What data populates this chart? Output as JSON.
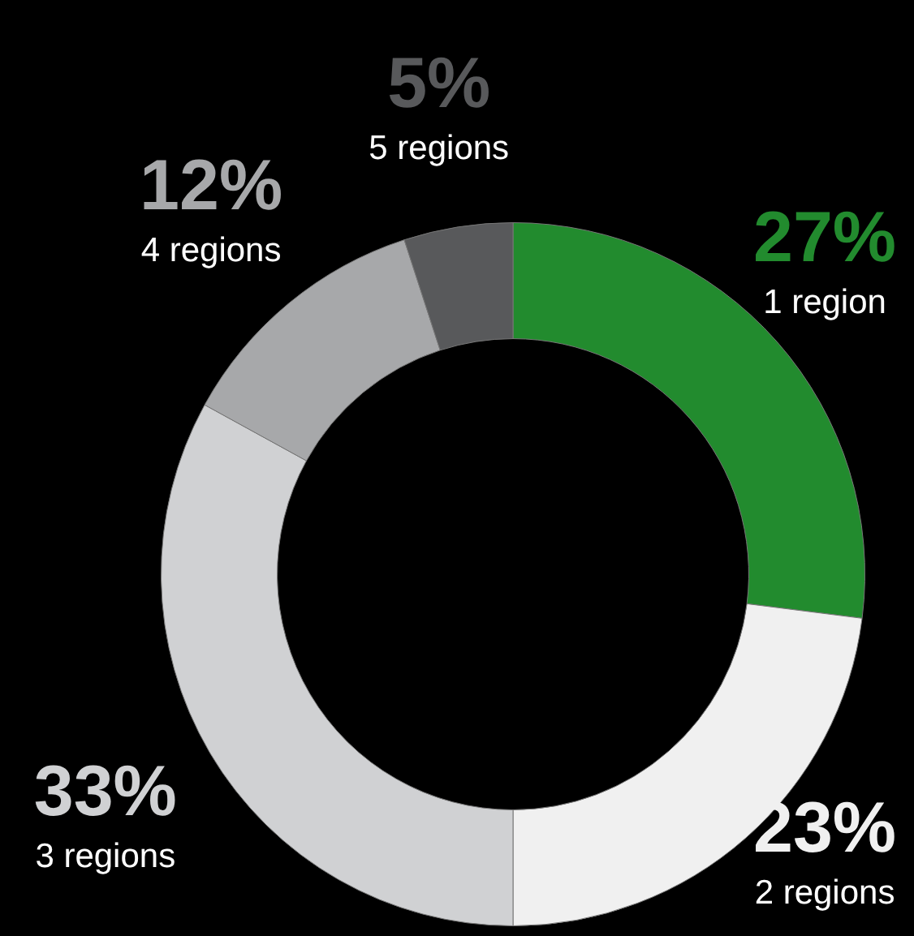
{
  "chart_data": {
    "type": "donut",
    "categories": [
      "1 region",
      "2 regions",
      "3 regions",
      "4 regions",
      "5 regions"
    ],
    "values": [
      27,
      23,
      33,
      12,
      5
    ],
    "colors": [
      "#228b2e",
      "#f0f0f0",
      "#d0d1d3",
      "#a7a8aa",
      "#58595b"
    ],
    "value_labels": [
      "27%",
      "23%",
      "33%",
      "12%",
      "5%"
    ],
    "legend": false
  }
}
